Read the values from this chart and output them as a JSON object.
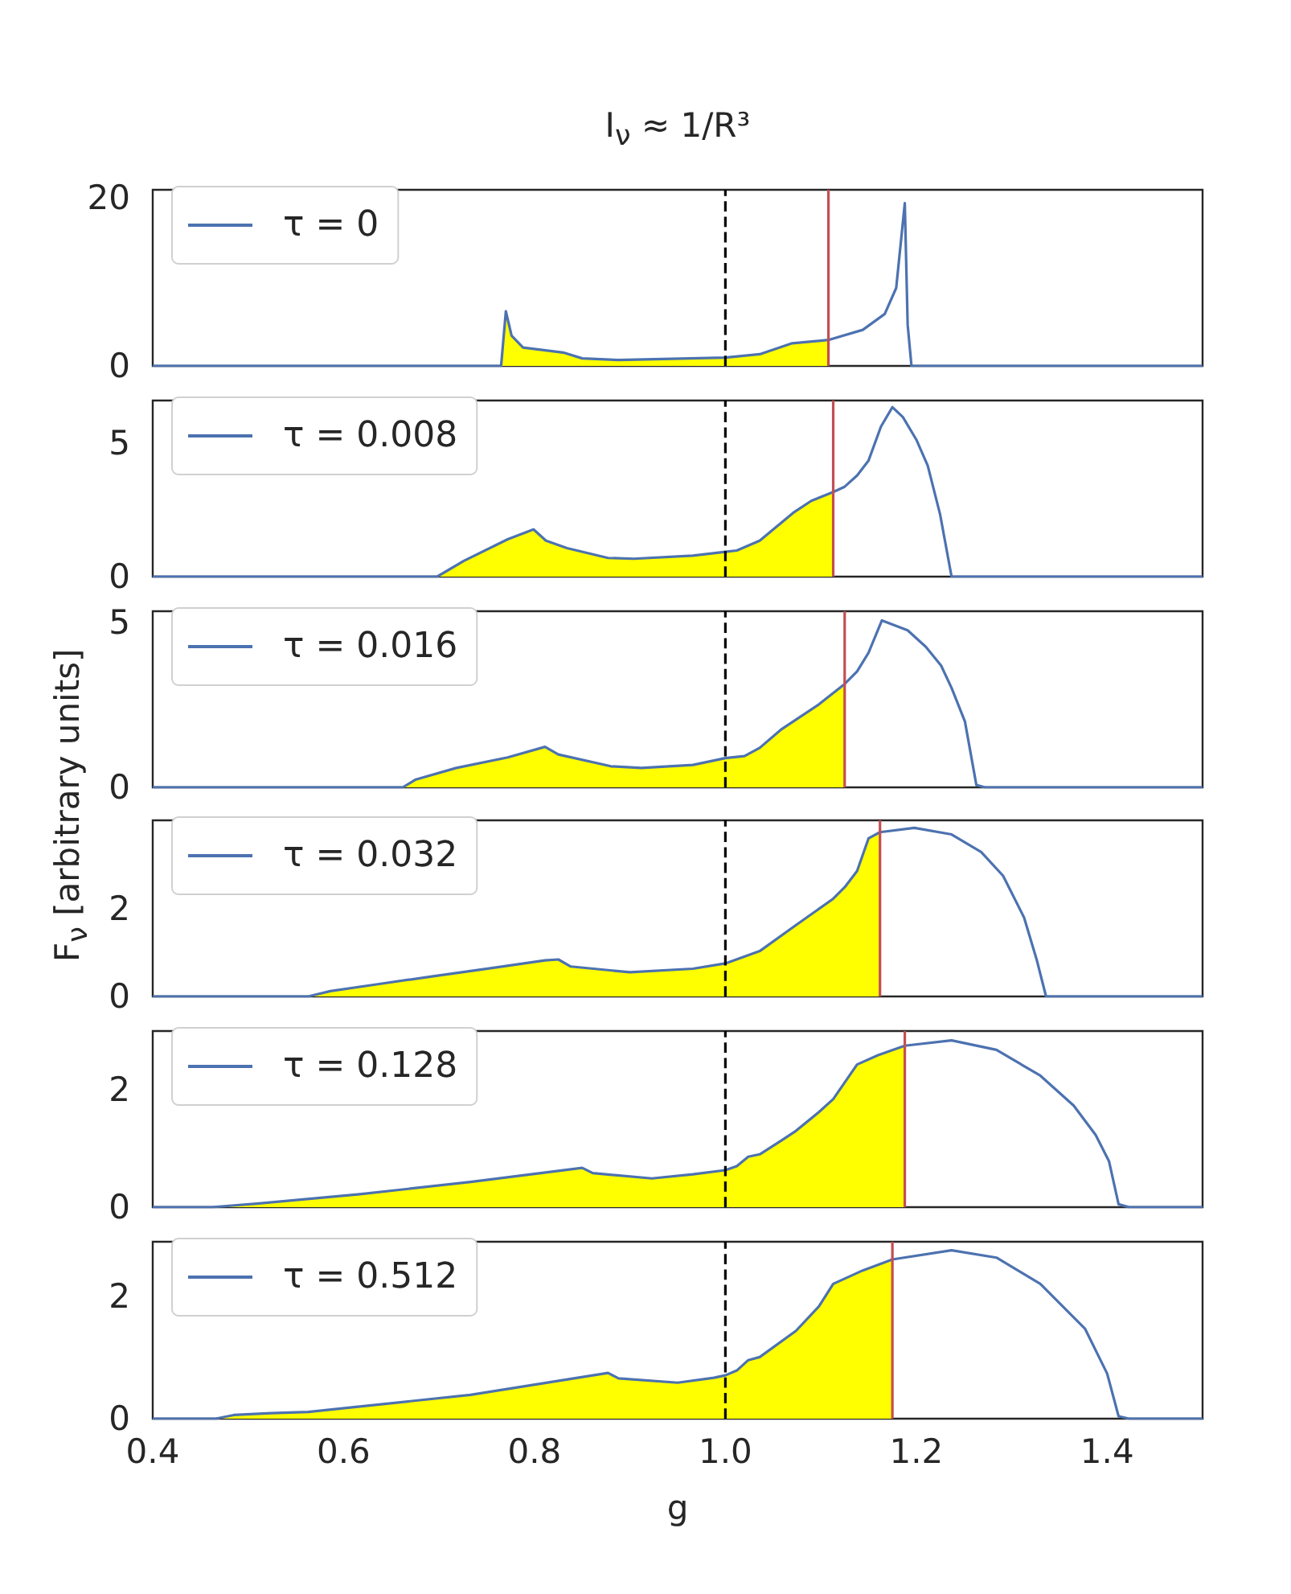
{
  "chart_data": [
    {
      "type": "line",
      "title": "I$_{ν}$ ≈ 1/R³",
      "xlim": [
        0.4,
        1.5
      ],
      "ylim": [
        0,
        21
      ],
      "yticks": [
        0,
        20
      ],
      "tick_labels": "y",
      "grid": false,
      "legend": "top left",
      "marker": "none",
      "series": [
        {
          "name": "τ = 0",
          "color": "#4c72b0",
          "x": [
            0.4,
            0.765,
            0.77,
            0.776,
            0.788,
            0.83,
            0.85,
            0.888,
            1.0,
            1.036,
            1.07,
            1.108,
            1.144,
            1.167,
            1.179,
            1.188,
            1.191,
            1.195,
            1.5
          ],
          "values": [
            0,
            0,
            6.5,
            3.6,
            2.2,
            1.6,
            0.9,
            0.7,
            1.0,
            1.4,
            2.7,
            3.1,
            4.3,
            6.2,
            9.3,
            19.4,
            4.9,
            0,
            0
          ]
        },
        {
          "type": "area",
          "color": "#ffff00",
          "x": [
            0.4,
            0.765,
            0.77,
            0.776,
            0.788,
            0.83,
            0.85,
            0.888,
            1.0,
            1.036,
            1.07,
            1.108
          ],
          "values": [
            0,
            0,
            6.5,
            3.6,
            2.2,
            1.6,
            0.9,
            0.7,
            1.0,
            1.4,
            2.7,
            3.1
          ]
        }
      ],
      "ref_lines": [
        {
          "axis": "x",
          "value": 1.0,
          "color": "#000000",
          "line_style": "dashed"
        },
        {
          "axis": "x",
          "value": 1.108,
          "color": "#c44e52"
        }
      ]
    },
    {
      "type": "line",
      "xlim": [
        0.4,
        1.5
      ],
      "ylim": [
        0,
        6.6
      ],
      "yticks": [
        0,
        5
      ],
      "tick_labels": "y",
      "grid": false,
      "legend": "top left",
      "marker": "none",
      "series": [
        {
          "name": "τ = 0.008",
          "color": "#4c72b0",
          "x": [
            0.4,
            0.698,
            0.726,
            0.772,
            0.799,
            0.812,
            0.834,
            0.877,
            0.904,
            0.966,
            1.0,
            1.012,
            1.036,
            1.071,
            1.09,
            1.113,
            1.125,
            1.138,
            1.15,
            1.163,
            1.175,
            1.186,
            1.2,
            1.212,
            1.225,
            1.237,
            1.5
          ],
          "values": [
            0,
            0,
            0.59,
            1.4,
            1.77,
            1.35,
            1.07,
            0.7,
            0.67,
            0.79,
            0.93,
            0.98,
            1.35,
            2.39,
            2.84,
            3.17,
            3.37,
            3.79,
            4.35,
            5.62,
            6.35,
            5.98,
            5.14,
            4.16,
            2.33,
            0,
            0
          ]
        },
        {
          "type": "area",
          "color": "#ffff00",
          "x": [
            0.4,
            0.698,
            0.726,
            0.772,
            0.799,
            0.812,
            0.834,
            0.877,
            0.904,
            0.966,
            1.0,
            1.012,
            1.036,
            1.071,
            1.09,
            1.113
          ],
          "values": [
            0,
            0,
            0.59,
            1.4,
            1.77,
            1.35,
            1.07,
            0.7,
            0.67,
            0.79,
            0.93,
            0.98,
            1.35,
            2.39,
            2.84,
            3.17
          ]
        }
      ],
      "ref_lines": [
        {
          "axis": "x",
          "value": 1.0,
          "color": "#000000",
          "line_style": "dashed"
        },
        {
          "axis": "x",
          "value": 1.113,
          "color": "#c44e52"
        }
      ]
    },
    {
      "type": "line",
      "ylabel": "F$_{ν}$ [arbitrary units]",
      "xlim": [
        0.4,
        1.5
      ],
      "ylim": [
        0,
        5.35
      ],
      "yticks": [
        0,
        5
      ],
      "tick_labels": "y",
      "grid": false,
      "legend": "top left",
      "marker": "none",
      "series": [
        {
          "name": "τ = 0.016",
          "color": "#4c72b0",
          "x": [
            0.4,
            0.662,
            0.675,
            0.718,
            0.772,
            0.811,
            0.825,
            0.88,
            0.912,
            0.966,
            1.0,
            1.02,
            1.036,
            1.059,
            1.098,
            1.125,
            1.138,
            1.15,
            1.164,
            1.191,
            1.21,
            1.226,
            1.237,
            1.251,
            1.263,
            1.272,
            1.5
          ],
          "values": [
            0,
            0,
            0.23,
            0.59,
            0.91,
            1.23,
            1.0,
            0.64,
            0.59,
            0.68,
            0.89,
            0.95,
            1.2,
            1.77,
            2.52,
            3.14,
            3.52,
            4.09,
            5.07,
            4.77,
            4.27,
            3.7,
            3.02,
            2.0,
            0.07,
            0,
            0
          ]
        },
        {
          "type": "area",
          "color": "#ffff00",
          "x": [
            0.4,
            0.662,
            0.675,
            0.718,
            0.772,
            0.811,
            0.825,
            0.88,
            0.912,
            0.966,
            1.0,
            1.02,
            1.036,
            1.059,
            1.098,
            1.125
          ],
          "values": [
            0,
            0,
            0.23,
            0.59,
            0.91,
            1.23,
            1.0,
            0.64,
            0.59,
            0.68,
            0.89,
            0.95,
            1.2,
            1.77,
            2.52,
            3.14
          ]
        }
      ],
      "ref_lines": [
        {
          "axis": "x",
          "value": 1.0,
          "color": "#000000",
          "line_style": "dashed"
        },
        {
          "axis": "x",
          "value": 1.125,
          "color": "#c44e52"
        }
      ]
    },
    {
      "type": "line",
      "xlim": [
        0.4,
        1.5
      ],
      "ylim": [
        0,
        4
      ],
      "yticks": [
        0,
        2
      ],
      "tick_labels": "y",
      "grid": false,
      "legend": "top left",
      "marker": "none",
      "series": [
        {
          "name": "τ = 0.032",
          "color": "#4c72b0",
          "x": [
            0.4,
            0.563,
            0.586,
            0.633,
            0.694,
            0.757,
            0.811,
            0.825,
            0.838,
            0.9,
            0.966,
            1.0,
            1.036,
            1.074,
            1.113,
            1.125,
            1.138,
            1.15,
            1.162,
            1.198,
            1.237,
            1.268,
            1.291,
            1.313,
            1.326,
            1.336,
            1.5
          ],
          "values": [
            0,
            0,
            0.12,
            0.27,
            0.46,
            0.65,
            0.82,
            0.84,
            0.68,
            0.55,
            0.63,
            0.75,
            1.03,
            1.62,
            2.22,
            2.48,
            2.85,
            3.59,
            3.73,
            3.83,
            3.68,
            3.28,
            2.74,
            1.79,
            0.85,
            0,
            0
          ]
        },
        {
          "type": "area",
          "color": "#ffff00",
          "x": [
            0.4,
            0.563,
            0.586,
            0.633,
            0.694,
            0.757,
            0.811,
            0.825,
            0.838,
            0.9,
            0.966,
            1.0,
            1.036,
            1.074,
            1.113,
            1.125,
            1.138,
            1.15,
            1.162
          ],
          "values": [
            0,
            0,
            0.12,
            0.27,
            0.46,
            0.65,
            0.82,
            0.84,
            0.68,
            0.55,
            0.63,
            0.75,
            1.03,
            1.62,
            2.22,
            2.48,
            2.85,
            3.59,
            3.73
          ]
        }
      ],
      "ref_lines": [
        {
          "axis": "x",
          "value": 1.0,
          "color": "#000000",
          "line_style": "dashed"
        },
        {
          "axis": "x",
          "value": 1.162,
          "color": "#c44e52"
        }
      ]
    },
    {
      "type": "line",
      "xlim": [
        0.4,
        1.5
      ],
      "ylim": [
        0,
        3
      ],
      "yticks": [
        0,
        2
      ],
      "tick_labels": "y",
      "grid": false,
      "legend": "top left",
      "marker": "none",
      "series": [
        {
          "name": "τ = 0.128",
          "color": "#4c72b0",
          "x": [
            0.4,
            0.462,
            0.509,
            0.617,
            0.733,
            0.85,
            0.861,
            0.923,
            0.966,
            1.0,
            1.012,
            1.024,
            1.036,
            1.059,
            1.074,
            1.098,
            1.113,
            1.138,
            1.16,
            1.188,
            1.237,
            1.284,
            1.33,
            1.365,
            1.388,
            1.402,
            1.412,
            1.423,
            1.5
          ],
          "values": [
            0,
            0,
            0.06,
            0.22,
            0.43,
            0.67,
            0.58,
            0.49,
            0.56,
            0.63,
            0.7,
            0.86,
            0.9,
            1.14,
            1.3,
            1.62,
            1.84,
            2.43,
            2.59,
            2.75,
            2.84,
            2.68,
            2.24,
            1.73,
            1.23,
            0.78,
            0.05,
            0,
            0
          ]
        },
        {
          "type": "area",
          "color": "#ffff00",
          "x": [
            0.4,
            0.462,
            0.509,
            0.617,
            0.733,
            0.85,
            0.861,
            0.923,
            0.966,
            1.0,
            1.012,
            1.024,
            1.036,
            1.059,
            1.074,
            1.098,
            1.113,
            1.138,
            1.16,
            1.188
          ],
          "values": [
            0,
            0,
            0.06,
            0.22,
            0.43,
            0.67,
            0.58,
            0.49,
            0.56,
            0.63,
            0.7,
            0.86,
            0.9,
            1.14,
            1.3,
            1.62,
            1.84,
            2.43,
            2.59,
            2.75
          ]
        }
      ],
      "ref_lines": [
        {
          "axis": "x",
          "value": 1.0,
          "color": "#000000",
          "line_style": "dashed"
        },
        {
          "axis": "x",
          "value": 1.188,
          "color": "#c44e52"
        }
      ]
    },
    {
      "type": "line",
      "xlabel": "g",
      "xlim": [
        0.4,
        1.5
      ],
      "ylim": [
        0,
        2.9
      ],
      "xticks": [
        0.4,
        0.6,
        0.8,
        {
          "value": 1,
          "label": "1.0"
        },
        1.2,
        1.4
      ],
      "yticks": [
        0,
        2
      ],
      "grid": false,
      "legend": "top left",
      "marker": "none",
      "series": [
        {
          "name": "τ = 0.512",
          "color": "#4c72b0",
          "x": [
            0.4,
            0.466,
            0.485,
            0.524,
            0.563,
            0.617,
            0.733,
            0.877,
            0.888,
            0.95,
            0.988,
            1.0,
            1.012,
            1.024,
            1.036,
            1.074,
            1.098,
            1.113,
            1.144,
            1.175,
            1.237,
            1.284,
            1.33,
            1.377,
            1.4,
            1.412,
            1.423,
            1.5
          ],
          "values": [
            0,
            0,
            0.06,
            0.09,
            0.11,
            0.2,
            0.39,
            0.75,
            0.66,
            0.59,
            0.67,
            0.71,
            0.79,
            0.96,
            1.01,
            1.44,
            1.84,
            2.21,
            2.43,
            2.61,
            2.76,
            2.64,
            2.21,
            1.47,
            0.74,
            0.04,
            0,
            0
          ]
        },
        {
          "type": "area",
          "color": "#ffff00",
          "x": [
            0.4,
            0.466,
            0.485,
            0.524,
            0.563,
            0.617,
            0.733,
            0.877,
            0.888,
            0.95,
            0.988,
            1.0,
            1.012,
            1.024,
            1.036,
            1.074,
            1.098,
            1.113,
            1.144,
            1.175
          ],
          "values": [
            0,
            0,
            0.06,
            0.09,
            0.11,
            0.2,
            0.39,
            0.75,
            0.66,
            0.59,
            0.67,
            0.71,
            0.79,
            0.96,
            1.01,
            1.44,
            1.84,
            2.21,
            2.43,
            2.61
          ]
        }
      ],
      "ref_lines": [
        {
          "axis": "x",
          "value": 1.0,
          "color": "#000000",
          "line_style": "dashed"
        },
        {
          "axis": "x",
          "value": 1.175,
          "color": "#c44e52"
        }
      ]
    }
  ]
}
